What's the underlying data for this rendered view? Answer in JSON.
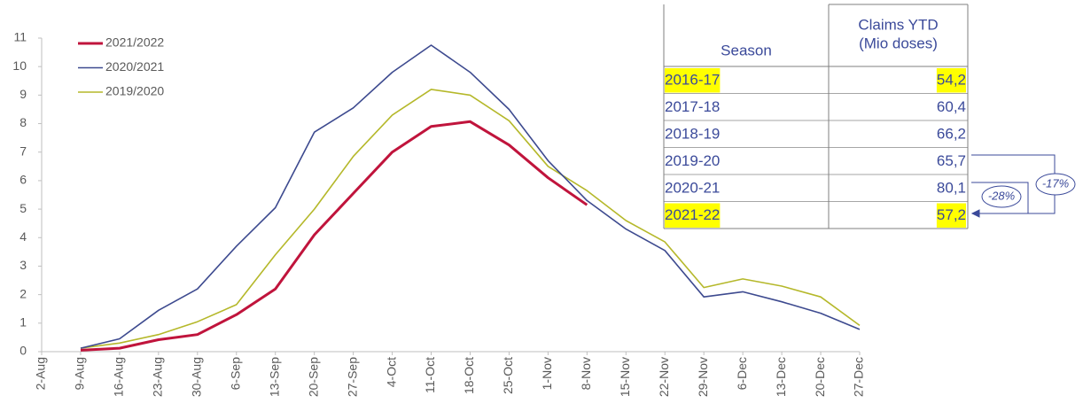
{
  "chart_data": {
    "type": "line",
    "categories": [
      "2-Aug",
      "9-Aug",
      "16-Aug",
      "23-Aug",
      "30-Aug",
      "6-Sep",
      "13-Sep",
      "20-Sep",
      "27-Sep",
      "4-Oct",
      "11-Oct",
      "18-Oct",
      "25-Oct",
      "1-Nov",
      "8-Nov",
      "15-Nov",
      "22-Nov",
      "29-Nov",
      "6-Dec",
      "13-Dec",
      "20-Dec",
      "27-Dec"
    ],
    "series": [
      {
        "name": "2021/2022",
        "color": "#c0143c",
        "width": 3,
        "values": [
          null,
          0.05,
          0.12,
          0.42,
          0.6,
          1.3,
          2.2,
          4.1,
          5.55,
          7.0,
          7.9,
          8.07,
          7.25,
          6.1,
          5.15,
          null,
          null,
          null,
          null,
          null,
          null,
          null
        ]
      },
      {
        "name": "2020/2021",
        "color": "#3d4a8f",
        "width": 1.6,
        "values": [
          null,
          0.12,
          0.45,
          1.45,
          2.2,
          3.7,
          5.05,
          7.7,
          8.55,
          9.8,
          10.75,
          9.8,
          8.5,
          6.7,
          5.3,
          4.3,
          3.55,
          1.92,
          2.1,
          1.75,
          1.35,
          0.78
        ]
      },
      {
        "name": "2019/2020",
        "color": "#b5b82a",
        "width": 1.6,
        "values": [
          null,
          0.12,
          0.3,
          0.6,
          1.05,
          1.65,
          3.4,
          5.0,
          6.85,
          8.3,
          9.2,
          9.0,
          8.1,
          6.5,
          5.65,
          4.6,
          3.85,
          2.25,
          2.55,
          2.3,
          1.92,
          0.92
        ]
      }
    ],
    "ylim": [
      0,
      11
    ],
    "yticks": [
      0,
      1,
      2,
      3,
      4,
      5,
      6,
      7,
      8,
      9,
      10,
      11
    ],
    "grid": false,
    "legend": "top-left"
  },
  "table": {
    "header": {
      "season": "Season",
      "claims": [
        "Claims YTD",
        "(Mio doses)"
      ]
    },
    "highlight_color": "#ffff00",
    "rows": [
      {
        "season": "2016-17",
        "claims": "54,2",
        "highlight": true
      },
      {
        "season": "2017-18",
        "claims": "60,4",
        "highlight": false
      },
      {
        "season": "2018-19",
        "claims": "66,2",
        "highlight": false
      },
      {
        "season": "2019-20",
        "claims": "65,7",
        "highlight": false
      },
      {
        "season": "2020-21",
        "claims": "80,1",
        "highlight": false
      },
      {
        "season": "2021-22",
        "claims": "57,2",
        "highlight": true
      }
    ],
    "annotations": [
      "-28%",
      "-17%"
    ]
  }
}
